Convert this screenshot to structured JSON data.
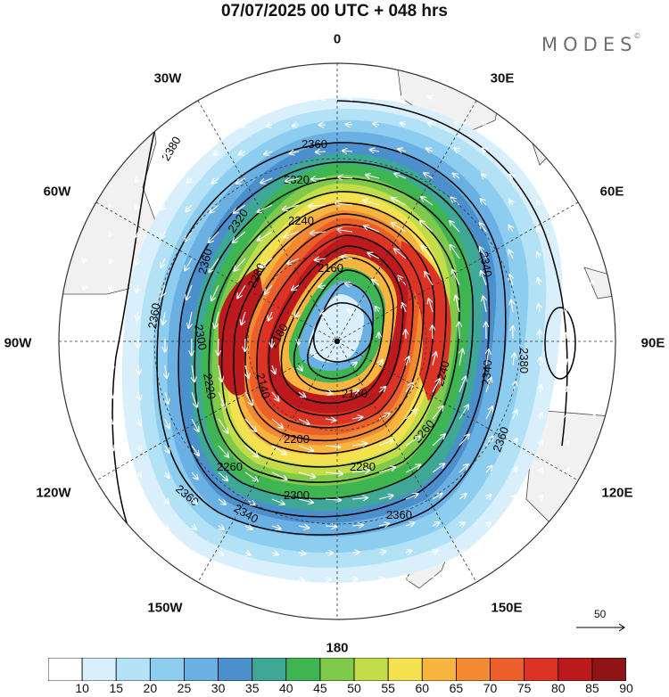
{
  "title": "07/07/2025  00 UTC  + 048 hrs",
  "brand": {
    "name": "MODES",
    "mark": "©"
  },
  "longitude_labels": [
    {
      "id": "lon-0",
      "text": "0"
    },
    {
      "id": "lon-30e",
      "text": "30E"
    },
    {
      "id": "lon-60e",
      "text": "60E"
    },
    {
      "id": "lon-90e",
      "text": "90E"
    },
    {
      "id": "lon-120e",
      "text": "120E"
    },
    {
      "id": "lon-150e",
      "text": "150E"
    },
    {
      "id": "lon-180",
      "text": "180"
    },
    {
      "id": "lon-150w",
      "text": "150W"
    },
    {
      "id": "lon-120w",
      "text": "120W"
    },
    {
      "id": "lon-90w",
      "text": "90W"
    },
    {
      "id": "lon-60w",
      "text": "60W"
    },
    {
      "id": "lon-30w",
      "text": "30W"
    }
  ],
  "contour_labels": [
    "2360",
    "2380",
    "2360",
    "2360",
    "2320",
    "2320",
    "2240",
    "2280",
    "2160",
    "2180",
    "2140",
    "2300",
    "2220",
    "2200",
    "2240",
    "2160",
    "2260",
    "2260",
    "2280",
    "2300",
    "2340",
    "2360",
    "2340",
    "2360",
    "2380",
    "2340",
    "2360"
  ],
  "wind_reference": {
    "value": "50"
  },
  "colorbar": {
    "ticks": [
      "10",
      "15",
      "20",
      "25",
      "30",
      "35",
      "40",
      "45",
      "50",
      "55",
      "60",
      "65",
      "70",
      "75",
      "80",
      "85",
      "90"
    ],
    "colors": [
      "#ffffff",
      "#d9f0fc",
      "#b3e2f7",
      "#8dcdef",
      "#6ab0e2",
      "#4b90cd",
      "#3ea795",
      "#3fb552",
      "#7fca4b",
      "#c3dd4a",
      "#f4e14f",
      "#f7b540",
      "#f38a32",
      "#ec5f2a",
      "#dd3325",
      "#bd1a1e",
      "#8e1416"
    ]
  }
}
